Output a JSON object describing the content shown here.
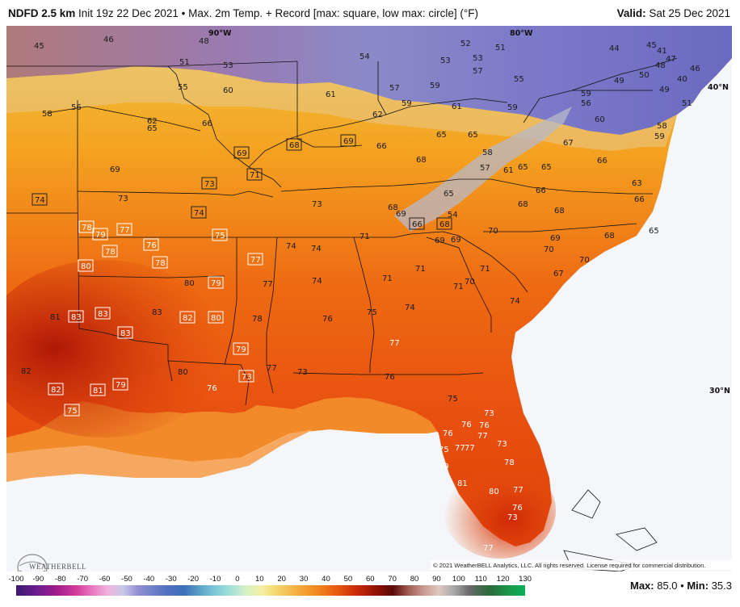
{
  "header": {
    "product": "NDFD 2.5 km",
    "description": "Init 19z 22 Dec 2021 • Max. 2m Temp. + Record [max: square, low max: circle] (°F)",
    "valid_label": "Valid:",
    "valid_value": "Sat 25 Dec 2021"
  },
  "map": {
    "grid_labels": {
      "lon_90": "90°W",
      "lon_80": "80°W",
      "lat_40": "40°N",
      "lat_30": "30°N"
    },
    "copyright": "© 2021 WeatherBELL Analytics, LLC. All rights reserved. License required for commercial distribution.",
    "logo_text": "WEATHERBELL",
    "colors": {
      "cold": "#6a6fc0",
      "mild": "#f4c840",
      "warm": "#f08a20",
      "hot": "#c8280a",
      "ocean": "#f4f6fa"
    },
    "temps": [
      {
        "v": "46"
      },
      {
        "v": "45"
      },
      {
        "v": "48"
      },
      {
        "v": "51"
      },
      {
        "v": "53"
      },
      {
        "v": "55"
      },
      {
        "v": "60"
      },
      {
        "v": "58"
      },
      {
        "v": "56"
      },
      {
        "v": "62"
      },
      {
        "v": "65"
      },
      {
        "v": "66"
      },
      {
        "v": "69"
      },
      {
        "v": "73"
      },
      {
        "v": "54"
      },
      {
        "v": "53"
      },
      {
        "v": "52"
      },
      {
        "v": "53"
      },
      {
        "v": "51"
      },
      {
        "v": "57"
      },
      {
        "v": "57"
      },
      {
        "v": "59"
      },
      {
        "v": "59"
      },
      {
        "v": "61"
      },
      {
        "v": "61"
      },
      {
        "v": "59"
      },
      {
        "v": "62"
      },
      {
        "v": "66"
      },
      {
        "v": "65"
      },
      {
        "v": "68"
      },
      {
        "v": "65"
      },
      {
        "v": "58"
      },
      {
        "v": "57"
      },
      {
        "v": "61"
      },
      {
        "v": "65"
      },
      {
        "v": "65"
      },
      {
        "v": "67"
      },
      {
        "v": "66"
      },
      {
        "v": "44"
      },
      {
        "v": "45"
      },
      {
        "v": "41"
      },
      {
        "v": "47"
      },
      {
        "v": "48"
      },
      {
        "v": "49"
      },
      {
        "v": "50"
      },
      {
        "v": "46"
      },
      {
        "v": "40"
      },
      {
        "v": "49"
      },
      {
        "v": "51"
      },
      {
        "v": "55"
      },
      {
        "v": "56"
      },
      {
        "v": "59"
      },
      {
        "v": "60"
      },
      {
        "v": "58"
      },
      {
        "v": "59"
      },
      {
        "v": "73"
      },
      {
        "v": "68"
      },
      {
        "v": "69"
      },
      {
        "v": "54"
      },
      {
        "v": "65"
      },
      {
        "v": "66"
      },
      {
        "v": "68"
      },
      {
        "v": "68"
      },
      {
        "v": "66"
      },
      {
        "v": "63"
      },
      {
        "v": "65"
      },
      {
        "v": "71"
      },
      {
        "v": "74"
      },
      {
        "v": "74"
      },
      {
        "v": "69"
      },
      {
        "v": "69"
      },
      {
        "v": "70"
      },
      {
        "v": "69"
      },
      {
        "v": "70"
      },
      {
        "v": "68"
      },
      {
        "v": "70"
      },
      {
        "v": "67"
      },
      {
        "v": "71"
      },
      {
        "v": "71"
      },
      {
        "v": "70"
      },
      {
        "v": "71"
      },
      {
        "v": "71"
      },
      {
        "v": "74"
      },
      {
        "v": "74"
      },
      {
        "v": "75"
      },
      {
        "v": "74"
      },
      {
        "v": "80"
      },
      {
        "v": "77"
      },
      {
        "v": "78"
      },
      {
        "v": "76"
      },
      {
        "v": "77"
      },
      {
        "v": "81"
      },
      {
        "v": "83"
      },
      {
        "v": "82"
      },
      {
        "v": "80"
      },
      {
        "v": "77"
      },
      {
        "v": "76"
      },
      {
        "v": "75"
      },
      {
        "v": "73"
      },
      {
        "v": "76"
      },
      {
        "v": "77"
      },
      {
        "v": "76"
      },
      {
        "v": "76"
      },
      {
        "v": "77"
      },
      {
        "v": "75"
      },
      {
        "v": "77"
      },
      {
        "v": "73"
      },
      {
        "v": "78"
      },
      {
        "v": "77"
      },
      {
        "v": "76"
      },
      {
        "v": "73"
      },
      {
        "v": "79"
      },
      {
        "v": "81"
      },
      {
        "v": "80"
      },
      {
        "v": "76"
      },
      {
        "v": "77"
      },
      {
        "v": "73"
      }
    ],
    "records": [
      {
        "v": "74"
      },
      {
        "v": "73"
      },
      {
        "v": "69"
      },
      {
        "v": "71"
      },
      {
        "v": "68"
      },
      {
        "v": "69"
      },
      {
        "v": "74"
      },
      {
        "v": "75"
      },
      {
        "v": "78"
      },
      {
        "v": "79"
      },
      {
        "v": "77"
      },
      {
        "v": "76"
      },
      {
        "v": "78"
      },
      {
        "v": "78"
      },
      {
        "v": "80"
      },
      {
        "v": "77"
      },
      {
        "v": "79"
      },
      {
        "v": "83"
      },
      {
        "v": "83"
      },
      {
        "v": "83"
      },
      {
        "v": "82"
      },
      {
        "v": "80"
      },
      {
        "v": "79"
      },
      {
        "v": "82"
      },
      {
        "v": "81"
      },
      {
        "v": "79"
      },
      {
        "v": "75"
      },
      {
        "v": "66"
      },
      {
        "v": "68"
      },
      {
        "v": "82"
      },
      {
        "v": "73"
      }
    ]
  },
  "colorbar": {
    "ticks": [
      "-100",
      "-90",
      "-80",
      "-70",
      "-60",
      "-50",
      "-40",
      "-30",
      "-20",
      "-10",
      "0",
      "10",
      "20",
      "30",
      "40",
      "50",
      "60",
      "70",
      "80",
      "90",
      "100",
      "110",
      "120",
      "130"
    ],
    "max_label": "Max:",
    "max_value": "85.0",
    "min_label": "Min:",
    "min_value": "35.3"
  }
}
